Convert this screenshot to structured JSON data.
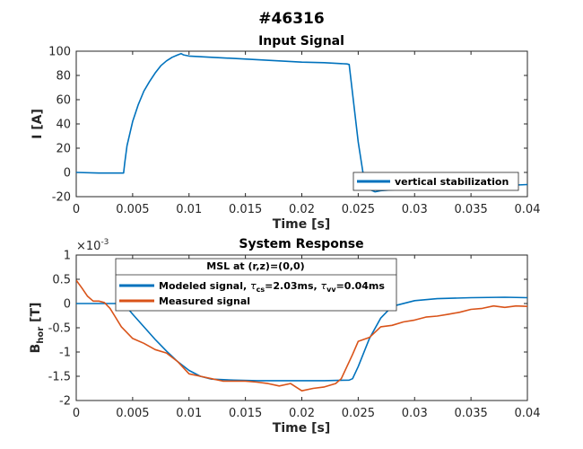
{
  "figure_title": "#46316",
  "chart_data": [
    {
      "type": "line",
      "title": "Input Signal",
      "xlabel": "Time [s]",
      "ylabel": "I [A]",
      "xlim": [
        0,
        0.04
      ],
      "ylim": [
        -20,
        100
      ],
      "xticks": [
        "0",
        "0.005",
        "0.01",
        "0.015",
        "0.02",
        "0.025",
        "0.03",
        "0.035",
        "0.04"
      ],
      "yticks": [
        "-20",
        "0",
        "20",
        "40",
        "60",
        "80",
        "100"
      ],
      "grid": false,
      "legend_position": "bottom-right",
      "series": [
        {
          "name": "vertical stabilization",
          "color": "#0072BD",
          "x": [
            0,
            0.002,
            0.0042,
            0.0043,
            0.0045,
            0.005,
            0.0055,
            0.006,
            0.0065,
            0.007,
            0.0075,
            0.008,
            0.0085,
            0.009,
            0.0093,
            0.0095,
            0.01,
            0.012,
            0.014,
            0.016,
            0.018,
            0.02,
            0.022,
            0.024,
            0.0242,
            0.0245,
            0.025,
            0.0255,
            0.026,
            0.0265,
            0.027,
            0.03,
            0.035,
            0.04
          ],
          "y": [
            0,
            -0.5,
            -0.5,
            8,
            22,
            42,
            56,
            67,
            75,
            82,
            88,
            92,
            95,
            97,
            98,
            97,
            96,
            95,
            94,
            93,
            92,
            91,
            90.5,
            89.5,
            89,
            65,
            25,
            -5,
            -14,
            -16,
            -15,
            -13,
            -12,
            -10
          ]
        }
      ]
    },
    {
      "type": "line",
      "title": "System Response",
      "xlabel": "Time [s]",
      "ylabel_main": "B",
      "ylabel_sub": "hor",
      "ylabel_unit": " [T]",
      "exponent_label": "×10",
      "exponent_power": "-3",
      "xlim": [
        0,
        0.04
      ],
      "ylim": [
        -2,
        1
      ],
      "xticks": [
        "0",
        "0.005",
        "0.01",
        "0.015",
        "0.02",
        "0.025",
        "0.03",
        "0.035",
        "0.04"
      ],
      "yticks": [
        "-2",
        "-1.5",
        "-1",
        "-0.5",
        "0",
        "0.5",
        "1"
      ],
      "y_scale_factor": "1e-3",
      "grid": false,
      "legend_position": "top-left",
      "legend_title": "MSL at (r,z)=(0,0)",
      "legend_entry_1": {
        "prefix": "Modeled signal, ",
        "tau_cs": "τ",
        "tau_cs_sub": "cs",
        "val_cs": "=2.03ms, ",
        "tau_vv": "τ",
        "tau_vv_sub": "vv",
        "val_vv": "=0.04ms"
      },
      "legend_entry_2": "Measured signal",
      "series": [
        {
          "name": "Modeled signal",
          "color": "#0072BD",
          "x": [
            0,
            0.0042,
            0.005,
            0.006,
            0.007,
            0.008,
            0.009,
            0.01,
            0.011,
            0.012,
            0.014,
            0.016,
            0.018,
            0.02,
            0.022,
            0.0242,
            0.0245,
            0.025,
            0.026,
            0.027,
            0.028,
            0.03,
            0.032,
            0.035,
            0.038,
            0.04
          ],
          "y": [
            0,
            0,
            -0.22,
            -0.48,
            -0.74,
            -0.98,
            -1.2,
            -1.38,
            -1.5,
            -1.56,
            -1.58,
            -1.59,
            -1.59,
            -1.59,
            -1.59,
            -1.58,
            -1.55,
            -1.3,
            -0.72,
            -0.3,
            -0.06,
            0.06,
            0.1,
            0.12,
            0.13,
            0.12
          ]
        },
        {
          "name": "Measured signal",
          "color": "#D95319",
          "x": [
            0,
            0.0005,
            0.001,
            0.0015,
            0.002,
            0.0025,
            0.003,
            0.004,
            0.005,
            0.006,
            0.007,
            0.008,
            0.009,
            0.01,
            0.011,
            0.012,
            0.013,
            0.014,
            0.015,
            0.016,
            0.017,
            0.018,
            0.019,
            0.02,
            0.021,
            0.022,
            0.023,
            0.0235,
            0.024,
            0.0245,
            0.025,
            0.026,
            0.027,
            0.028,
            0.029,
            0.03,
            0.031,
            0.032,
            0.033,
            0.034,
            0.035,
            0.036,
            0.037,
            0.038,
            0.039,
            0.04
          ],
          "y": [
            0.48,
            0.32,
            0.15,
            0.05,
            0.05,
            0.02,
            -0.1,
            -0.48,
            -0.72,
            -0.82,
            -0.95,
            -1.02,
            -1.2,
            -1.45,
            -1.5,
            -1.55,
            -1.6,
            -1.6,
            -1.6,
            -1.62,
            -1.65,
            -1.7,
            -1.65,
            -1.8,
            -1.75,
            -1.72,
            -1.65,
            -1.55,
            -1.3,
            -1.05,
            -0.78,
            -0.7,
            -0.48,
            -0.45,
            -0.38,
            -0.34,
            -0.28,
            -0.26,
            -0.22,
            -0.18,
            -0.12,
            -0.1,
            -0.05,
            -0.08,
            -0.05,
            -0.06
          ]
        }
      ]
    }
  ]
}
